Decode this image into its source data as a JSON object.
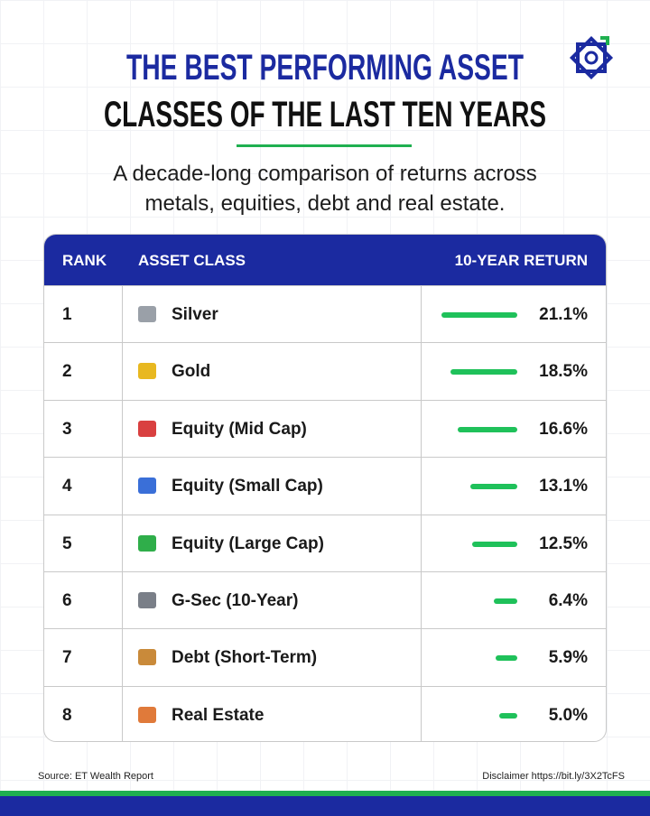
{
  "header": {
    "title_line1": "THE BEST PERFORMING ASSET",
    "title_line2": "CLASSES OF THE LAST TEN YEARS",
    "subtitle": "A decade-long comparison of returns across metals, equities, debt and real estate."
  },
  "table": {
    "columns": [
      "RANK",
      "ASSET CLASS",
      "10-YEAR RETURN"
    ],
    "rows": [
      {
        "rank": 1,
        "asset": "Silver",
        "return": 21.1,
        "return_label": "21.1%"
      },
      {
        "rank": 2,
        "asset": "Gold",
        "return": 18.5,
        "return_label": "18.5%"
      },
      {
        "rank": 3,
        "asset": "Equity (Mid Cap)",
        "return": 16.6,
        "return_label": "16.6%"
      },
      {
        "rank": 4,
        "asset": "Equity (Small Cap)",
        "return": 13.1,
        "return_label": "13.1%"
      },
      {
        "rank": 5,
        "asset": "Equity (Large Cap)",
        "return": 12.5,
        "return_label": "12.5%"
      },
      {
        "rank": 6,
        "asset": "G-Sec (10-Year)",
        "return": 6.4,
        "return_label": "6.4%"
      },
      {
        "rank": 7,
        "asset": "Debt (Short-Term)",
        "return": 5.9,
        "return_label": "5.9%"
      },
      {
        "rank": 8,
        "asset": "Real Estate",
        "return": 5.0,
        "return_label": "5.0%"
      }
    ]
  },
  "footer": {
    "source": "Source: ET Wealth Report",
    "disclaimer": "Disclaimer https://bit.ly/3X2TcFS"
  }
}
